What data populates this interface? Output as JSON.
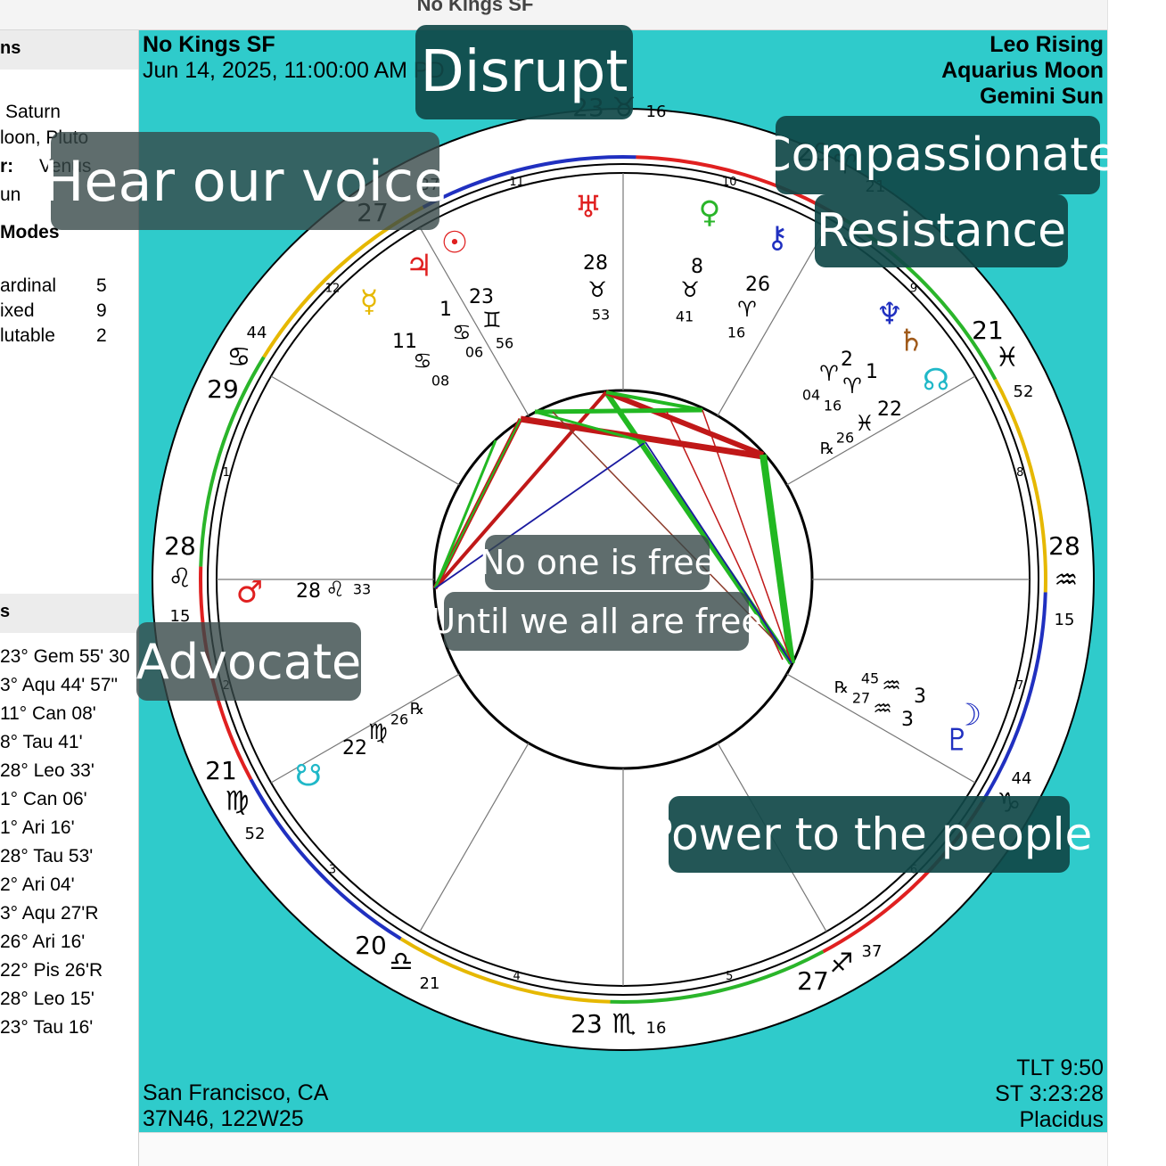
{
  "window": {
    "title": "No Kings SF"
  },
  "sidebar": {
    "header1": "ns",
    "lines1": [
      "Saturn",
      "loon, Pluto",
      "r:",
      "Venus",
      "un"
    ],
    "modes_label": "Modes",
    "modes": [
      {
        "name": "ardinal",
        "count": "5"
      },
      {
        "name": "ixed",
        "count": "9"
      },
      {
        "name": "lutable",
        "count": "2"
      }
    ],
    "header2": "s",
    "positions": [
      "23° Gem 55' 30",
      "3° Aqu 44' 57\"",
      "11° Can 08'",
      "8° Tau 41'",
      "28° Leo 33'",
      "1° Can 06'",
      "1° Ari 16'",
      "28° Tau 53'",
      "2° Ari 04'",
      "3° Aqu 27'R",
      "26° Ari 16'",
      "22° Pis 26'R",
      "28° Leo 15'",
      "23° Tau 16'"
    ]
  },
  "chart_info": {
    "name": "No Kings SF",
    "datetime": "Jun 14, 2025, 11:00:00 AM PD",
    "rising": "Leo Rising",
    "moon": "Aquarius Moon",
    "sun": "Gemini Sun",
    "location": "San Francisco, CA",
    "coords": "37N46, 122W25",
    "tlt": "TLT 9:50",
    "st": "ST 3:23:28",
    "house_system": "Placidus"
  },
  "overlays": {
    "disrupt": "Disrupt",
    "hear": "Hear our voice",
    "compassionate": "Compassionate",
    "resistance": "Resistance",
    "no_one": "No one is free",
    "until": "Until we all are free",
    "advocate": "Advocate",
    "power": "Power to the people"
  },
  "cusps": [
    {
      "id": "mc",
      "deg": "23",
      "sign": "♉",
      "min": "16"
    },
    {
      "id": "c11",
      "deg": "20",
      "sign": "♈",
      "min": "21"
    },
    {
      "id": "c12",
      "deg": "21",
      "sign": "♓",
      "min": "52"
    },
    {
      "id": "dsc",
      "deg": "28",
      "sign": "♒",
      "min": "15"
    },
    {
      "id": "c5",
      "deg": "",
      "sign": "♑",
      "min": "44"
    },
    {
      "id": "c6",
      "deg": "27",
      "sign": "♐",
      "min": "37"
    },
    {
      "id": "ic",
      "deg": "23",
      "sign": "♏",
      "min": "16"
    },
    {
      "id": "c8",
      "deg": "20",
      "sign": "♎",
      "min": "21"
    },
    {
      "id": "c9",
      "deg": "21",
      "sign": "♍",
      "min": "52"
    },
    {
      "id": "asc",
      "deg": "28",
      "sign": "♌",
      "min": "15"
    },
    {
      "id": "c2",
      "deg": "29",
      "sign": "♋",
      "min": "44"
    },
    {
      "id": "c3",
      "deg": "27",
      "sign": "",
      "min": "37"
    }
  ],
  "house_numbers": [
    "10",
    "9",
    "8",
    "7",
    "6",
    "5",
    "4",
    "3",
    "2",
    "1",
    "12",
    "11"
  ],
  "planets": [
    {
      "name": "uranus",
      "glyph": "♅",
      "color": "#e02020",
      "deg": "28",
      "sign": "♉",
      "min": "53"
    },
    {
      "name": "venus",
      "glyph": "♀",
      "color": "#2ab52a",
      "deg": "8",
      "sign": "♉",
      "min": "41"
    },
    {
      "name": "chiron",
      "glyph": "⚷",
      "color": "#2030c0",
      "deg": "26",
      "sign": "♈",
      "min": "16"
    },
    {
      "name": "sun",
      "glyph": "☉",
      "color": "#e02020",
      "deg": "23",
      "sign": "♊",
      "min": "56"
    },
    {
      "name": "jupiter",
      "glyph": "♃",
      "color": "#e02020",
      "deg": "1",
      "sign": "♋",
      "min": "06"
    },
    {
      "name": "mercury",
      "glyph": "☿",
      "color": "#e6b800",
      "deg": "11",
      "sign": "♋",
      "min": "08"
    },
    {
      "name": "neptune",
      "glyph": "♆",
      "color": "#2030c0",
      "deg": "2",
      "sign": "♈",
      "min": "04"
    },
    {
      "name": "saturn",
      "glyph": "♄",
      "color": "#a05a1a",
      "deg": "1",
      "sign": "♈",
      "min": "16"
    },
    {
      "name": "north-node",
      "glyph": "☊",
      "color": "#20b8c8",
      "deg": "22",
      "sign": "♓",
      "min": "26"
    },
    {
      "name": "moon",
      "glyph": "☽",
      "color": "#2030c0",
      "deg": "3",
      "sign": "♒",
      "min": "45"
    },
    {
      "name": "pluto",
      "glyph": "♇",
      "color": "#2030c0",
      "deg": "3",
      "sign": "♒",
      "min": "27"
    },
    {
      "name": "mars",
      "glyph": "♂",
      "color": "#e02020",
      "deg": "28",
      "sign": "♌",
      "min": "33"
    },
    {
      "name": "south-node",
      "glyph": "☋",
      "color": "#20b8c8",
      "deg": "22",
      "sign": "♍",
      "min": "26"
    }
  ],
  "retrograde_mark": "℞",
  "colors": {
    "background": "#2fcbcb",
    "fire": "#e02020",
    "earth": "#2ab52a",
    "air": "#e6b800",
    "water": "#2030c0",
    "trine": "#22b822",
    "square": "#c01818",
    "opposition": "#1a1aa0"
  }
}
